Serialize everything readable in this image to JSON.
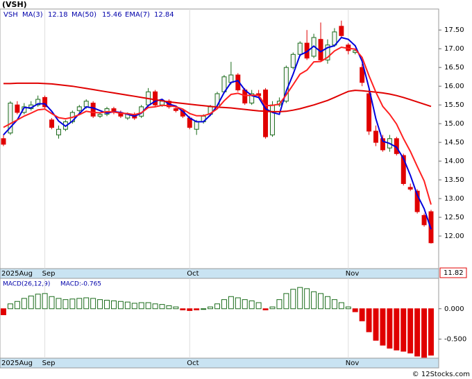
{
  "chart_data": [
    {
      "type": "candlestick",
      "title": "(VSH)",
      "ticker": "VSH",
      "categories": [
        "2025Aug",
        null,
        null,
        null,
        null,
        null,
        "Sep",
        null,
        null,
        null,
        null,
        null,
        null,
        null,
        null,
        null,
        null,
        null,
        null,
        null,
        null,
        null,
        null,
        null,
        null,
        null,
        null,
        "Oct",
        null,
        null,
        null,
        null,
        null,
        null,
        null,
        null,
        null,
        null,
        null,
        null,
        null,
        null,
        null,
        null,
        null,
        null,
        null,
        null,
        null,
        null,
        "Nov",
        null,
        null,
        null,
        null,
        null,
        null,
        null,
        null,
        null,
        null,
        null,
        null
      ],
      "open": [
        14.6,
        14.75,
        15.5,
        15.3,
        15.4,
        15.5,
        15.7,
        15.1,
        14.7,
        14.85,
        15.05,
        15.35,
        15.45,
        15.55,
        15.2,
        15.25,
        15.4,
        15.3,
        15.15,
        15.25,
        15.2,
        15.5,
        15.85,
        15.5,
        15.6,
        15.4,
        15.35,
        15.15,
        14.85,
        15.05,
        15.25,
        15.45,
        15.85,
        16.1,
        16.3,
        15.9,
        15.55,
        15.8,
        15.9,
        14.7,
        15.5,
        15.6,
        16.5,
        16.85,
        17.15,
        16.8,
        17.25,
        16.7,
        17.1,
        17.6,
        17.1,
        16.9,
        16.5,
        15.8,
        14.8,
        14.6,
        14.35,
        14.6,
        14.15,
        13.3,
        13.2,
        12.55,
        12.65
      ],
      "high": [
        14.7,
        15.6,
        15.6,
        15.55,
        15.6,
        15.75,
        15.75,
        15.15,
        14.95,
        15.1,
        15.35,
        15.5,
        15.65,
        15.6,
        15.3,
        15.45,
        15.45,
        15.35,
        15.3,
        15.3,
        15.5,
        15.95,
        15.9,
        15.65,
        15.65,
        15.45,
        15.4,
        15.2,
        15.1,
        15.25,
        15.5,
        15.85,
        16.3,
        16.65,
        16.35,
        15.95,
        15.9,
        15.9,
        15.95,
        15.6,
        15.7,
        16.55,
        16.9,
        17.2,
        17.5,
        17.4,
        17.7,
        17.25,
        17.55,
        17.75,
        17.15,
        17.0,
        16.6,
        15.9,
        14.95,
        14.7,
        14.7,
        14.65,
        14.2,
        13.4,
        13.25,
        12.6,
        12.7
      ],
      "low": [
        14.4,
        14.7,
        15.25,
        15.25,
        15.35,
        15.45,
        15.4,
        14.85,
        14.6,
        14.8,
        15.0,
        15.3,
        15.4,
        15.15,
        15.15,
        15.2,
        15.25,
        15.15,
        15.1,
        15.1,
        15.15,
        15.45,
        15.45,
        15.45,
        15.4,
        15.3,
        15.15,
        14.85,
        14.7,
        15.0,
        15.2,
        15.4,
        15.8,
        16.05,
        15.85,
        15.5,
        15.5,
        15.7,
        14.6,
        14.65,
        15.45,
        15.55,
        16.45,
        16.8,
        16.7,
        16.75,
        16.65,
        16.6,
        17.05,
        17.3,
        16.85,
        16.85,
        16.0,
        14.7,
        14.4,
        14.25,
        14.25,
        14.15,
        13.35,
        13.2,
        12.6,
        12.25,
        11.8
      ],
      "close": [
        14.45,
        15.55,
        15.3,
        15.45,
        15.5,
        15.65,
        15.45,
        14.9,
        14.85,
        15.05,
        15.3,
        15.45,
        15.6,
        15.2,
        15.25,
        15.4,
        15.3,
        15.2,
        15.25,
        15.15,
        15.45,
        15.85,
        15.5,
        15.6,
        15.45,
        15.35,
        15.2,
        14.9,
        15.05,
        15.2,
        15.45,
        15.8,
        16.25,
        16.3,
        15.9,
        15.55,
        15.8,
        15.75,
        14.65,
        15.5,
        15.6,
        16.5,
        16.85,
        17.15,
        16.75,
        17.3,
        16.7,
        17.1,
        17.45,
        17.35,
        16.95,
        16.95,
        16.1,
        14.8,
        14.5,
        14.3,
        14.6,
        14.2,
        13.4,
        13.25,
        12.65,
        12.3,
        11.82
      ],
      "up_color": "#1a6b1a",
      "down_color": "#e00000",
      "series": [
        {
          "name": "MA(3)",
          "color": "#0000dd",
          "width": 2,
          "values": [
            14.7,
            14.9,
            15.1,
            15.43,
            15.42,
            15.53,
            15.53,
            15.33,
            15.07,
            14.93,
            15.07,
            15.27,
            15.45,
            15.42,
            15.35,
            15.28,
            15.32,
            15.3,
            15.25,
            15.2,
            15.28,
            15.48,
            15.6,
            15.65,
            15.52,
            15.47,
            15.33,
            15.15,
            15.05,
            15.05,
            15.23,
            15.48,
            15.83,
            16.1,
            16.15,
            15.9,
            15.75,
            15.7,
            15.4,
            15.3,
            15.25,
            15.87,
            16.32,
            16.83,
            16.92,
            17.07,
            16.92,
            17.03,
            17.08,
            17.3,
            17.25,
            17.08,
            16.67,
            15.95,
            15.13,
            14.53,
            14.47,
            14.37,
            14.07,
            13.62,
            13.1,
            12.73,
            12.18
          ]
        },
        {
          "name": "MA(50)",
          "color": "#e00000",
          "width": 2,
          "values": [
            16.07,
            16.07,
            16.08,
            16.08,
            16.08,
            16.08,
            16.07,
            16.06,
            16.04,
            16.02,
            16.0,
            15.97,
            15.94,
            15.91,
            15.88,
            15.85,
            15.82,
            15.79,
            15.76,
            15.73,
            15.7,
            15.67,
            15.64,
            15.61,
            15.58,
            15.56,
            15.54,
            15.52,
            15.5,
            15.48,
            15.46,
            15.44,
            15.43,
            15.42,
            15.4,
            15.38,
            15.36,
            15.34,
            15.33,
            15.32,
            15.32,
            15.33,
            15.36,
            15.4,
            15.45,
            15.5,
            15.56,
            15.62,
            15.7,
            15.78,
            15.86,
            15.89,
            15.88,
            15.86,
            15.84,
            15.82,
            15.79,
            15.75,
            15.7,
            15.64,
            15.58,
            15.52,
            15.46
          ]
        },
        {
          "name": "EMA(7)",
          "color": "#ff2020",
          "width": 2,
          "values": [
            14.9,
            15.0,
            15.1,
            15.2,
            15.28,
            15.37,
            15.39,
            15.27,
            15.16,
            15.13,
            15.17,
            15.24,
            15.33,
            15.3,
            15.29,
            15.32,
            15.31,
            15.28,
            15.27,
            15.24,
            15.29,
            15.43,
            15.45,
            15.49,
            15.48,
            15.45,
            15.39,
            15.27,
            15.21,
            15.21,
            15.27,
            15.4,
            15.61,
            15.78,
            15.81,
            15.75,
            15.76,
            15.76,
            15.48,
            15.49,
            15.52,
            15.77,
            16.04,
            16.32,
            16.43,
            16.65,
            16.66,
            16.77,
            16.94,
            17.04,
            17.01,
            16.99,
            16.77,
            16.28,
            15.84,
            15.46,
            15.25,
            14.99,
            14.6,
            14.26,
            13.86,
            13.47,
            12.84
          ]
        }
      ],
      "ylim": [
        11.13,
        18.06
      ],
      "yticks": [
        {
          "value": 12,
          "label": "12.00"
        },
        {
          "value": 12.5,
          "label": "12.50"
        },
        {
          "value": 13,
          "label": "13.00"
        },
        {
          "value": 13.5,
          "label": "13.50"
        },
        {
          "value": 14,
          "label": "14.00"
        },
        {
          "value": 14.5,
          "label": "14.50"
        },
        {
          "value": 15,
          "label": "15.00"
        },
        {
          "value": 15.5,
          "label": "15.50"
        },
        {
          "value": 16,
          "label": "16.00"
        },
        {
          "value": 16.5,
          "label": "16.50"
        },
        {
          "value": 17,
          "label": "17.00"
        },
        {
          "value": 17.5,
          "label": "17.50"
        }
      ]
    },
    {
      "type": "bar",
      "title": "MACD(26,12,9)",
      "value_label": "MACD:-0.765",
      "categories": [
        "2025Aug",
        null,
        null,
        null,
        null,
        null,
        "Sep",
        null,
        null,
        null,
        null,
        null,
        null,
        null,
        null,
        null,
        null,
        null,
        null,
        null,
        null,
        null,
        null,
        null,
        null,
        null,
        null,
        "Oct",
        null,
        null,
        null,
        null,
        null,
        null,
        null,
        null,
        null,
        null,
        null,
        null,
        null,
        null,
        null,
        null,
        null,
        null,
        null,
        null,
        null,
        null,
        "Nov",
        null,
        null,
        null,
        null,
        null,
        null,
        null,
        null,
        null,
        null,
        null,
        null
      ],
      "values": [
        -0.1,
        0.08,
        0.12,
        0.17,
        0.21,
        0.24,
        0.25,
        0.2,
        0.17,
        0.15,
        0.16,
        0.17,
        0.18,
        0.17,
        0.15,
        0.14,
        0.13,
        0.12,
        0.11,
        0.09,
        0.1,
        0.1,
        0.08,
        0.07,
        0.05,
        0.03,
        -0.02,
        -0.03,
        -0.02,
        0.0,
        0.03,
        0.08,
        0.15,
        0.2,
        0.18,
        0.15,
        0.13,
        0.1,
        -0.02,
        0.03,
        0.15,
        0.25,
        0.32,
        0.35,
        0.33,
        0.28,
        0.25,
        0.2,
        0.15,
        0.1,
        0.03,
        -0.05,
        -0.2,
        -0.38,
        -0.52,
        -0.6,
        -0.65,
        -0.68,
        -0.7,
        -0.73,
        -0.78,
        -0.8,
        -0.765
      ],
      "up_color": "#1a6b1a",
      "down_color": "#e00000",
      "ylim": [
        -0.814,
        0.5
      ],
      "yticks": [
        {
          "value": -0.5,
          "label": "-0.500"
        },
        {
          "value": 0,
          "label": "0.000"
        }
      ]
    }
  ],
  "watermark": "© 12Stocks.com"
}
